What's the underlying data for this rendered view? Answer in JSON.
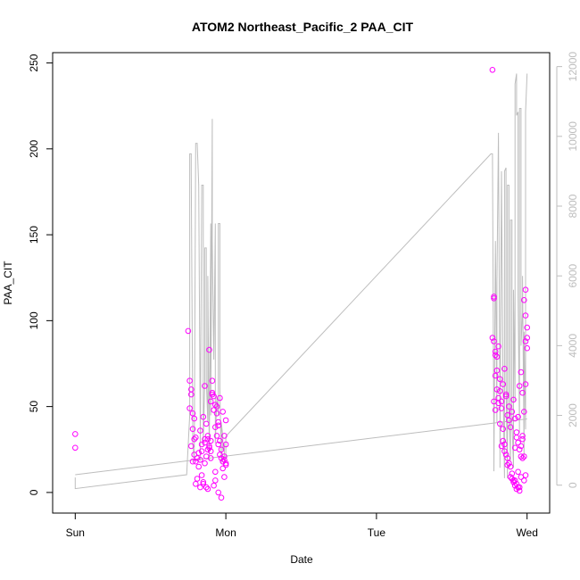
{
  "chart_data": {
    "type": "scatter",
    "title": "ATOM2 Northeast_Pacific_2 PAA_CIT",
    "xlabel": "Date",
    "ylabel": "PAA_CIT",
    "x_ticks": [
      "Sun",
      "Mon",
      "Tue",
      "Wed"
    ],
    "xlim": [
      -0.15,
      3.15
    ],
    "ylim": [
      -12,
      256
    ],
    "y_ticks": [
      0,
      50,
      100,
      150,
      200,
      250
    ],
    "y2lim": [
      -800,
      12400
    ],
    "y2_ticks": [
      0,
      2000,
      4000,
      6000,
      8000,
      10000,
      12000
    ],
    "grid": false,
    "point_color": "#ff00ff",
    "line_color": "#bdbdbd",
    "series": [
      {
        "kind": "points",
        "axis": "left",
        "x": [
          0.0,
          0.0,
          0.75,
          0.76,
          0.77,
          0.77,
          0.76,
          0.78,
          0.79,
          0.78,
          0.77,
          0.8,
          0.79,
          0.78,
          0.81,
          0.82,
          0.8,
          0.81,
          0.83,
          0.85,
          0.84,
          0.86,
          0.84,
          0.83,
          0.87,
          0.85,
          0.88,
          0.86,
          0.89,
          0.88,
          0.87,
          0.9,
          0.9,
          0.91,
          0.89,
          0.92,
          0.91,
          0.93,
          0.92,
          0.94,
          0.93,
          0.95,
          0.94,
          0.96,
          0.95,
          0.97,
          0.96,
          0.97,
          0.98,
          0.98,
          0.99,
          0.99,
          1.0,
          1.0,
          0.99,
          1.0,
          0.98,
          0.86,
          0.85,
          0.87,
          0.88,
          0.92,
          0.93,
          0.95,
          0.97,
          0.99,
          0.9,
          0.89,
          0.96,
          0.94,
          0.83,
          0.82,
          0.8,
          0.79,
          0.86,
          0.91,
          0.93,
          0.95,
          1.0,
          0.84,
          0.88,
          0.9,
          2.77,
          2.78,
          2.77,
          2.79,
          2.78,
          2.8,
          2.79,
          2.78,
          2.81,
          2.8,
          2.82,
          2.81,
          2.79,
          2.83,
          2.82,
          2.84,
          2.83,
          2.85,
          2.84,
          2.86,
          2.85,
          2.87,
          2.86,
          2.88,
          2.87,
          2.89,
          2.88,
          2.9,
          2.89,
          2.91,
          2.9,
          2.92,
          2.91,
          2.93,
          2.92,
          2.94,
          2.93,
          2.95,
          2.94,
          2.96,
          2.95,
          2.97,
          2.96,
          2.98,
          2.97,
          2.99,
          2.98,
          3.0,
          2.99,
          2.98,
          2.99,
          3.0,
          2.99,
          2.85,
          2.86,
          2.84,
          2.83,
          2.82,
          2.81,
          2.87,
          2.88,
          2.89,
          2.9,
          2.91,
          2.92,
          2.93,
          2.94,
          2.95,
          2.96,
          2.97,
          2.78,
          2.79,
          2.8,
          2.95,
          2.96,
          2.97,
          2.94,
          2.93,
          2.92,
          2.99,
          3.0,
          2.98
        ],
        "y": [
          34,
          26,
          94,
          65,
          60,
          57,
          49,
          46,
          43,
          37,
          27,
          32,
          22,
          18,
          20,
          15,
          5,
          8,
          3,
          6,
          10,
          17,
          28,
          36,
          40,
          44,
          33,
          31,
          27,
          25,
          21,
          20,
          30,
          57,
          83,
          56,
          58,
          51,
          48,
          46,
          38,
          41,
          33,
          30,
          28,
          25,
          22,
          20,
          18,
          14,
          21,
          19,
          16,
          28,
          33,
          42,
          47,
          62,
          5,
          3,
          2,
          4,
          7,
          0,
          -3,
          9,
          53,
          26,
          55,
          50,
          19,
          23,
          18,
          31,
          29,
          65,
          12,
          39,
          17,
          24,
          31,
          24,
          246,
          113,
          90,
          80,
          88,
          71,
          68,
          53,
          85,
          60,
          59,
          52,
          48,
          49,
          40,
          30,
          27,
          24,
          37,
          22,
          28,
          20,
          56,
          17,
          16,
          15,
          42,
          11,
          9,
          7,
          8,
          7,
          6,
          5,
          4,
          3,
          2,
          1,
          12,
          9,
          3,
          33,
          27,
          21,
          20,
          10,
          7,
          90,
          118,
          112,
          103,
          96,
          88,
          72,
          57,
          63,
          53,
          66,
          55,
          45,
          50,
          38,
          47,
          54,
          43,
          35,
          29,
          25,
          21,
          31,
          114,
          82,
          79,
          62,
          70,
          58,
          44,
          32,
          26,
          63,
          84,
          47
        ]
      },
      {
        "kind": "line",
        "axis": "right",
        "x": [
          0.0,
          0.0,
          0.74,
          0.76,
          0.76,
          0.77,
          0.77,
          0.78,
          0.78,
          0.79,
          0.8,
          0.81,
          0.82,
          0.82,
          0.83,
          0.83,
          0.84,
          0.85,
          0.85,
          0.86,
          0.86,
          0.87,
          0.87,
          0.88,
          0.88,
          0.89,
          0.89,
          0.9,
          0.9,
          0.91,
          0.91,
          0.92,
          0.93,
          0.93,
          0.94,
          0.95,
          0.95,
          0.96,
          0.96,
          0.97,
          0.97,
          0.98,
          0.98,
          0.99,
          0.99,
          1.0,
          1.0,
          2.76,
          2.77,
          2.78,
          2.78,
          2.79,
          2.8,
          2.8,
          2.81,
          2.82,
          2.82,
          2.83,
          2.84,
          2.85,
          2.85,
          2.86,
          2.86,
          2.87,
          2.87,
          2.88,
          2.88,
          2.89,
          2.89,
          2.9,
          2.9,
          2.91,
          2.91,
          2.92,
          2.92,
          2.93,
          2.93,
          2.94,
          2.94,
          2.95,
          2.95,
          2.96,
          2.96,
          2.97,
          2.97,
          2.98,
          2.98,
          2.99,
          2.99,
          3.0
        ],
        "y": [
          220,
          -100,
          300,
          2000,
          9500,
          9500,
          9000,
          1800,
          1200,
          700,
          9800,
          9800,
          8600,
          8600,
          1500,
          700,
          8600,
          8600,
          1200,
          3000,
          6800,
          6800,
          3000,
          1800,
          6000,
          1000,
          700,
          7500,
          2000,
          10500,
          7000,
          3600,
          7500,
          1200,
          2500,
          2000,
          7500,
          7500,
          2800,
          600,
          1800,
          1400,
          1000,
          1200,
          600,
          800,
          1400,
          9500,
          9500,
          1000,
          400,
          7000,
          1800,
          5800,
          10100,
          2000,
          500,
          9000,
          3000,
          200,
          9000,
          9100,
          3000,
          200,
          8600,
          8600,
          2200,
          700,
          7600,
          7600,
          1800,
          500,
          5600,
          2400,
          11500,
          11800,
          10600,
          10700,
          5500,
          1500,
          10800,
          10800,
          4000,
          5000,
          6000,
          800,
          4400,
          1600,
          10700,
          11800
        ]
      },
      {
        "kind": "line",
        "axis": "right",
        "x": [
          0.0,
          3.0
        ],
        "y": [
          300,
          1900
        ]
      }
    ]
  }
}
